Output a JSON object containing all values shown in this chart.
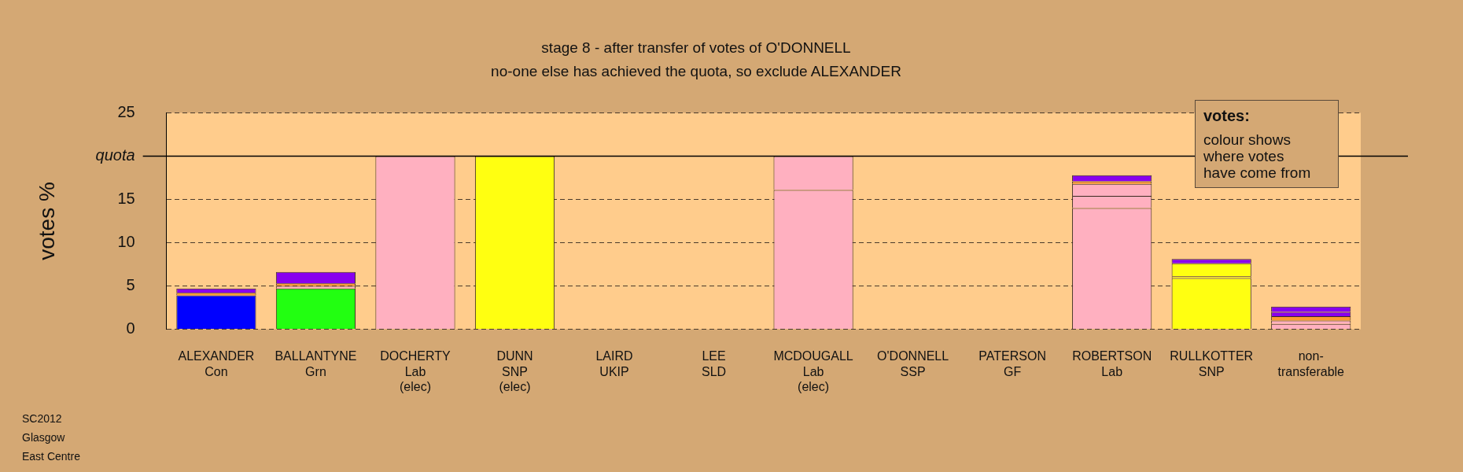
{
  "chart_data": {
    "type": "bar",
    "title": "stage 8 - after transfer of votes of O'DONNELL",
    "subtitle": "no-one else has achieved the quota, so exclude ALEXANDER",
    "ylabel": "votes %",
    "categories": [
      "ALEXANDER\nCon",
      "BALLANTYNE\nGrn",
      "DOCHERTY\nLab\n(elec)",
      "DUNN\nSNP\n(elec)",
      "LAIRD\nUKIP",
      "LEE\nSLD",
      "MCDOUGALL\nLab\n(elec)",
      "O'DONNELL\nSSP",
      "PATERSON\nGF",
      "ROBERTSON\nLab",
      "RULLKOTTER\nSNP",
      "non-\ntransferable"
    ],
    "stacked": true,
    "series": [
      {
        "values": [
          3.9,
          4.7,
          20,
          20,
          0,
          0,
          16.1,
          0,
          0,
          14.0,
          5.9,
          0.6
        ],
        "colors": [
          "#0000ff",
          "#22ff11",
          "#ffb0c0",
          "#ffff11",
          "#ffb0c0",
          "#ffb0c0",
          "#ffb0c0",
          "#ffb0c0",
          "#ffb0c0",
          "#ffb0c0",
          "#ffff11",
          "#ffb0c0"
        ]
      },
      {
        "values": [
          0,
          0.3,
          0,
          0,
          0,
          0,
          3.9,
          0,
          0,
          1.4,
          0.2,
          0.4
        ],
        "colors": [
          "#ffb0c0",
          "#ffb0c0",
          "#ffb0c0",
          "#ffb0c0",
          "#ffb0c0",
          "#ffb0c0",
          "#ffb0c0",
          "#ffb0c0",
          "#ffb0c0",
          "#ffb0c0",
          "#ffff11",
          "#ffb0c0"
        ]
      },
      {
        "values": [
          0.3,
          0.3,
          0,
          0,
          0,
          0,
          0,
          0,
          0,
          1.4,
          1.5,
          0.5
        ],
        "colors": [
          "#ff9933",
          "#ff9933",
          "#ff9933",
          "#ff9933",
          "#ff9933",
          "#ff9933",
          "#ff9933",
          "#ff9933",
          "#ff9933",
          "#ffb0c0",
          "#ffff11",
          "#ff9933"
        ]
      },
      {
        "values": [
          0.5,
          1.3,
          0,
          0,
          0,
          0,
          0,
          0,
          0,
          0.3,
          0,
          0.5
        ],
        "colors": [
          "#8800ee",
          "#8800ee",
          "#8800ee",
          "#8800ee",
          "#8800ee",
          "#8800ee",
          "#8800ee",
          "#8800ee",
          "#8800ee",
          "#ff9933",
          "#8800ee",
          "#8800ee"
        ]
      },
      {
        "values": [
          0,
          0,
          0,
          0,
          0,
          0,
          0,
          0,
          0,
          0.7,
          0.5,
          0.6
        ],
        "colors": [
          "#8800ee",
          "#8800ee",
          "#8800ee",
          "#8800ee",
          "#8800ee",
          "#8800ee",
          "#8800ee",
          "#8800ee",
          "#8800ee",
          "#8800ee",
          "#8800ee",
          "#8800ee"
        ]
      }
    ],
    "ylim": [
      0,
      25
    ],
    "yticks": [
      0,
      5,
      10,
      15,
      {
        "value": 20,
        "label": "quota"
      },
      25
    ],
    "ref_lines": [
      {
        "axis": "y",
        "value": 20
      }
    ],
    "grid": "y",
    "legend": false,
    "annotations": [
      "votes:",
      "colour shows\nwhere votes\nhave come from",
      "SC2012",
      "Glasgow",
      "East Centre"
    ]
  }
}
